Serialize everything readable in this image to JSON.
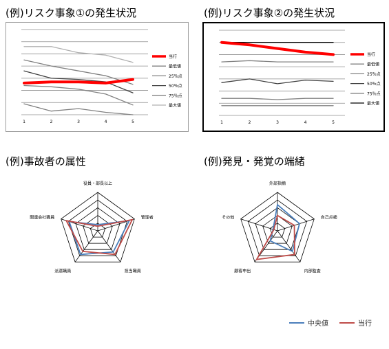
{
  "titles": {
    "t1": "(例)リスク事象①の発生状況",
    "t2": "(例)リスク事象②の発生状況",
    "t3": "(例)事故者の属性",
    "t4": "(例)発見・発覚の端緒"
  },
  "chart_data": [
    {
      "type": "line",
      "title": "(例)リスク事象①の発生状況",
      "x": [
        1,
        2,
        3,
        4,
        5
      ],
      "ylim": [
        0,
        7
      ],
      "grid": true,
      "legend": "right",
      "series": [
        {
          "name": "当行",
          "values": [
            2.6,
            2.7,
            2.7,
            2.6,
            2.9
          ],
          "color": "#ff0000"
        },
        {
          "name": "最低値",
          "values": [
            0.9,
            0.3,
            0.5,
            0.2,
            0.0
          ],
          "color": "#808080"
        },
        {
          "name": "25％点",
          "values": [
            2.4,
            2.3,
            2.1,
            1.7,
            0.8
          ],
          "color": "#808080"
        },
        {
          "name": "50％点",
          "values": [
            3.6,
            3.0,
            2.9,
            2.7,
            1.8
          ],
          "color": "#404040"
        },
        {
          "name": "75％点",
          "values": [
            4.5,
            4.0,
            3.6,
            3.2,
            2.5
          ],
          "color": "#808080"
        },
        {
          "name": "最大値",
          "values": [
            5.6,
            5.6,
            5.1,
            4.9,
            4.3
          ],
          "color": "#b0b0b0"
        }
      ]
    },
    {
      "type": "line",
      "title": "(例)リスク事象②の発生状況",
      "x": [
        1,
        2,
        3,
        4,
        5
      ],
      "ylim": [
        0,
        7
      ],
      "grid": true,
      "legend": "right",
      "series": [
        {
          "name": "当行",
          "values": [
            6.0,
            5.8,
            5.5,
            5.2,
            5.0
          ],
          "color": "#ff0000"
        },
        {
          "name": "最低値",
          "values": [
            0.8,
            0.8,
            0.8,
            0.8,
            0.8
          ],
          "color": "#808080"
        },
        {
          "name": "25％点",
          "values": [
            1.4,
            1.4,
            1.3,
            1.4,
            1.4
          ],
          "color": "#808080"
        },
        {
          "name": "50％点",
          "values": [
            2.7,
            3.0,
            2.6,
            2.9,
            2.8
          ],
          "color": "#404040"
        },
        {
          "name": "75％点",
          "values": [
            4.4,
            4.5,
            4.4,
            4.4,
            4.4
          ],
          "color": "#808080"
        },
        {
          "name": "最大値",
          "values": [
            6.0,
            6.0,
            6.0,
            6.0,
            6.0
          ],
          "color": "#000000"
        }
      ]
    },
    {
      "type": "radar",
      "title": "(例)事故者の属性",
      "axes": [
        "役員・部長以上",
        "管理者",
        "担当職員",
        "派遣職員",
        "関連会社職員"
      ],
      "max": 5,
      "series": [
        {
          "name": "中央値",
          "values": [
            0.8,
            4.3,
            3.4,
            3.8,
            3.9
          ],
          "color": "#4a7ebb"
        },
        {
          "name": "当行",
          "values": [
            0.6,
            4.7,
            3.8,
            3.3,
            4.3
          ],
          "color": "#be4b48"
        }
      ]
    },
    {
      "type": "radar",
      "title": "(例)発見・発覚の端緒",
      "axes": [
        "外部指摘",
        "自己点検",
        "内部監査",
        "顧客申出",
        "その他"
      ],
      "max": 5,
      "series": [
        {
          "name": "中央値",
          "values": [
            3.4,
            3.0,
            3.3,
            1.6,
            0.6
          ],
          "color": "#4a7ebb"
        },
        {
          "name": "当行",
          "values": [
            2.0,
            2.3,
            3.8,
            4.6,
            0.5
          ],
          "color": "#be4b48"
        }
      ]
    }
  ],
  "bottom_legend": {
    "series1": "中央値",
    "series2": "当行"
  }
}
